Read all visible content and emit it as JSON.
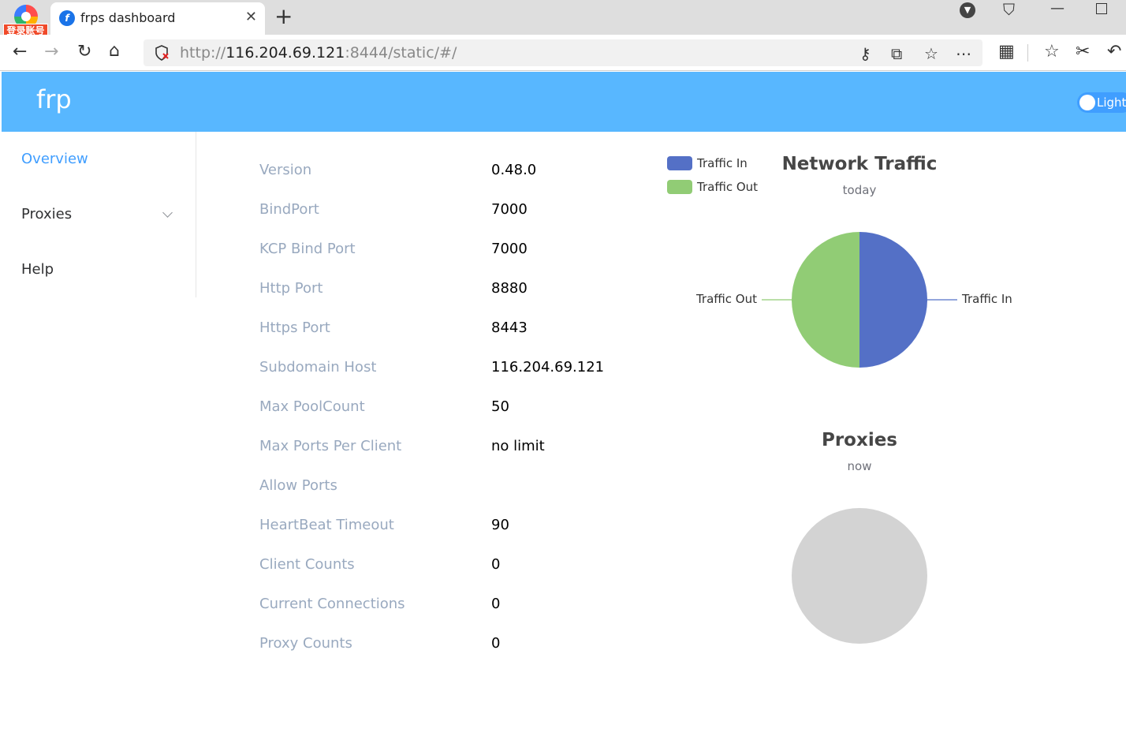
{
  "browser": {
    "profile_badge": "登录账号",
    "tab_title": "frps dashboard",
    "url_scheme": "http://",
    "url_host": "116.204.69.121",
    "url_rest": ":8444/static/#/"
  },
  "app": {
    "logo": "frp",
    "theme_label": "Light"
  },
  "sidebar": {
    "items": [
      {
        "label": "Overview",
        "active": true
      },
      {
        "label": "Proxies",
        "active": false
      },
      {
        "label": "Help",
        "active": false
      }
    ]
  },
  "info": [
    {
      "key": "Version",
      "value": "0.48.0"
    },
    {
      "key": "BindPort",
      "value": "7000"
    },
    {
      "key": "KCP Bind Port",
      "value": "7000"
    },
    {
      "key": "Http Port",
      "value": "8880"
    },
    {
      "key": "Https Port",
      "value": "8443"
    },
    {
      "key": "Subdomain Host",
      "value": "116.204.69.121"
    },
    {
      "key": "Max PoolCount",
      "value": "50"
    },
    {
      "key": "Max Ports Per Client",
      "value": "no limit"
    },
    {
      "key": "Allow Ports",
      "value": ""
    },
    {
      "key": "HeartBeat Timeout",
      "value": "90"
    },
    {
      "key": "Client Counts",
      "value": "0"
    },
    {
      "key": "Current Connections",
      "value": "0"
    },
    {
      "key": "Proxy Counts",
      "value": "0"
    }
  ],
  "chart_data": [
    {
      "type": "pie",
      "title": "Network Traffic",
      "subtitle": "today",
      "categories": [
        "Traffic In",
        "Traffic Out"
      ],
      "values": [
        50,
        50
      ],
      "colors": [
        "#5470c6",
        "#91cc75"
      ],
      "legend": "top-left"
    },
    {
      "type": "pie",
      "title": "Proxies",
      "subtitle": "now",
      "categories": [],
      "values": [],
      "empty_color": "#d3d3d3"
    }
  ]
}
